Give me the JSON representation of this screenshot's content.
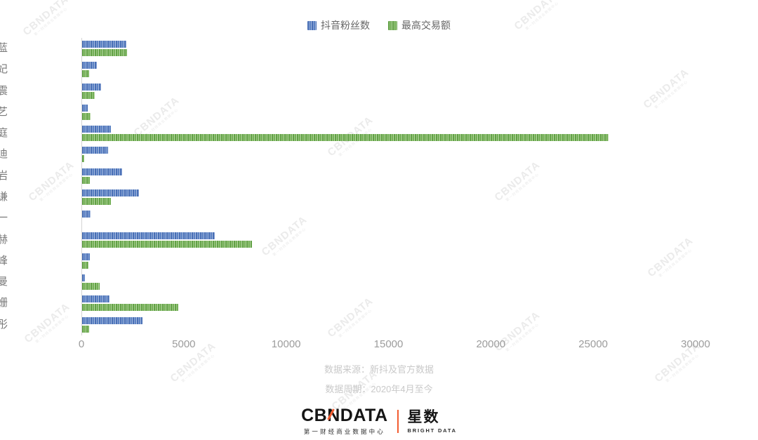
{
  "legend": {
    "items": [
      {
        "label": "抖音粉丝数",
        "color": "#4e79bd"
      },
      {
        "label": "最高交易额",
        "color": "#6aa84f"
      }
    ]
  },
  "chart_data": {
    "type": "bar",
    "orientation": "horizontal",
    "categories": [
      "王祖蓝",
      "陈彦妃",
      "于震",
      "张歆艺",
      "张庭",
      "杨迪",
      "柳岩",
      "薛之谦",
      "吕一",
      "陈赫",
      "汪峰",
      "佘诗曼",
      "袁姗姗",
      "关晓彤"
    ],
    "series": [
      {
        "name": "抖音粉丝数",
        "color": "#4e79bd",
        "values": [
          2160,
          710,
          930,
          280,
          1400,
          1270,
          1950,
          2780,
          420,
          6490,
          370,
          140,
          1320,
          2940
        ]
      },
      {
        "name": "最高交易额",
        "color": "#6aa84f",
        "values": [
          2200,
          340,
          620,
          410,
          25700,
          100,
          380,
          1400,
          0,
          8280,
          300,
          860,
          4700,
          340
        ]
      }
    ],
    "xlim": [
      0,
      30000
    ],
    "xticks": [
      0,
      5000,
      10000,
      15000,
      20000,
      25000,
      30000
    ],
    "grid": false,
    "legend_position": "top"
  },
  "footer": {
    "source": "数据来源：新抖及官方数据",
    "period": "数据周期：2020年4月至今"
  },
  "logo": {
    "wordmark_left": "CB",
    "wordmark_n": "N",
    "wordmark_right": "DATA",
    "subtitle": "第一财经商业数据中心",
    "brand": "星数",
    "brand_sub": "BRIGHT DATA",
    "accent_color": "#f25d31"
  },
  "watermark": {
    "text": "CBNDATA",
    "subtext": "第一财经商业数据中心"
  }
}
